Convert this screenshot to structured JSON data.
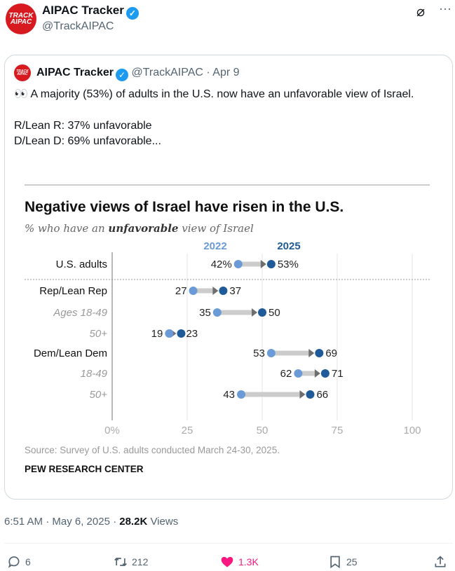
{
  "tweet": {
    "author_name": "AIPAC Tracker",
    "author_handle": "@TrackAIPAC",
    "avatar_text": "TRACK AIPAC",
    "timestamp": "6:51 AM · May 6, 2025 · ",
    "views_count": "28.2K",
    "views_label": " Views",
    "actions": {
      "replies": "6",
      "reposts": "212",
      "likes": "1.3K",
      "bookmarks": "25"
    },
    "like_color": "#f91880"
  },
  "quote": {
    "author_name": "AIPAC Tracker",
    "author_handle": "@TrackAIPAC",
    "date": "· Apr 9",
    "text_line1": "👀 A majority (53%) of adults in the U.S. now have an unfavorable view of Israel.",
    "text_line2": "R/Lean R: 37% unfavorable",
    "text_line3": "D/Lean D: 69% unfavorable..."
  },
  "chart_data": {
    "type": "dumbbell",
    "title": "Negative views of Israel have risen in the U.S.",
    "subtitle_pre": "% who have an ",
    "subtitle_bold": "unfavorable",
    "subtitle_post": " view of Israel",
    "series_names": [
      "2022",
      "2025"
    ],
    "series_colors": [
      "#6b9bd6",
      "#1f5a99"
    ],
    "categories": [
      {
        "label": "U.S. adults",
        "sub": false,
        "v2022": 42,
        "v2025": 53,
        "l2022": "42%",
        "l2025": "53%"
      },
      {
        "label": "Rep/Lean Rep",
        "sub": false,
        "v2022": 27,
        "v2025": 37,
        "l2022": "27",
        "l2025": "37"
      },
      {
        "label": "Ages 18-49",
        "sub": true,
        "v2022": 35,
        "v2025": 50,
        "l2022": "35",
        "l2025": "50"
      },
      {
        "label": "50+",
        "sub": true,
        "v2022": 19,
        "v2025": 23,
        "l2022": "19",
        "l2025": "23"
      },
      {
        "label": "Dem/Lean Dem",
        "sub": false,
        "v2022": 53,
        "v2025": 69,
        "l2022": "53",
        "l2025": "69"
      },
      {
        "label": "18-49",
        "sub": true,
        "v2022": 62,
        "v2025": 71,
        "l2022": "62",
        "l2025": "71"
      },
      {
        "label": "50+",
        "sub": true,
        "v2022": 43,
        "v2025": 66,
        "l2022": "43",
        "l2025": "66"
      }
    ],
    "xticks": [
      0,
      25,
      50,
      75,
      100
    ],
    "xtick_labels": [
      "0%",
      "25",
      "50",
      "75",
      "100"
    ],
    "xlim": [
      0,
      100
    ],
    "grid": true,
    "source": "Source: Survey of U.S. adults conducted March 24-30, 2025.",
    "credit": "PEW RESEARCH CENTER"
  }
}
